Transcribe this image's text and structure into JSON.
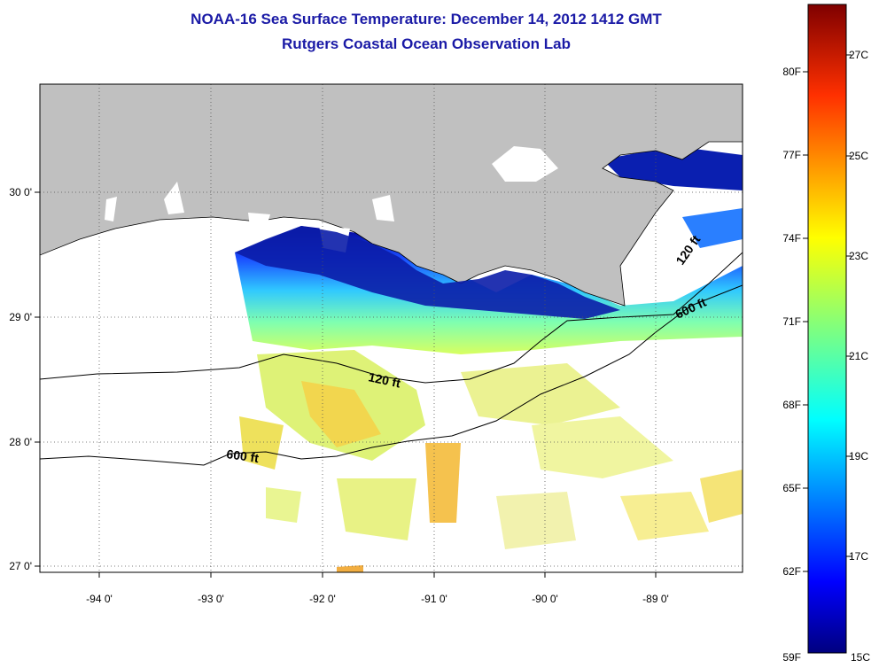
{
  "title": "NOAA-16 Sea Surface Temperature:  December 14, 2012 1412 GMT",
  "subtitle": "Rutgers Coastal Ocean Observation Lab",
  "map": {
    "lon_ticks": [
      "-94 0'",
      "-93 0'",
      "-92 0'",
      "-91 0'",
      "-90 0'",
      "-89 0'"
    ],
    "lat_ticks": [
      "30 0'",
      "29 0'",
      "28 0'",
      "27 0'"
    ],
    "land_color": "#c0c0c0",
    "contours": [
      {
        "label": "120 ft"
      },
      {
        "label": "600 ft"
      }
    ],
    "contour_labels": [
      "120 ft",
      "120 ft",
      "600 ft",
      "600 ft"
    ]
  },
  "colorbar": {
    "f_labels": [
      "80F",
      "77F",
      "74F",
      "71F",
      "68F",
      "65F",
      "62F",
      "59F"
    ],
    "c_labels": [
      "27C",
      "25C",
      "23C",
      "21C",
      "19C",
      "17C",
      "15C"
    ],
    "colors": [
      "#00007f",
      "#0000ff",
      "#007fff",
      "#00ffff",
      "#7fff7f",
      "#ffff00",
      "#ff7f00",
      "#ff0000",
      "#7f0000"
    ]
  }
}
